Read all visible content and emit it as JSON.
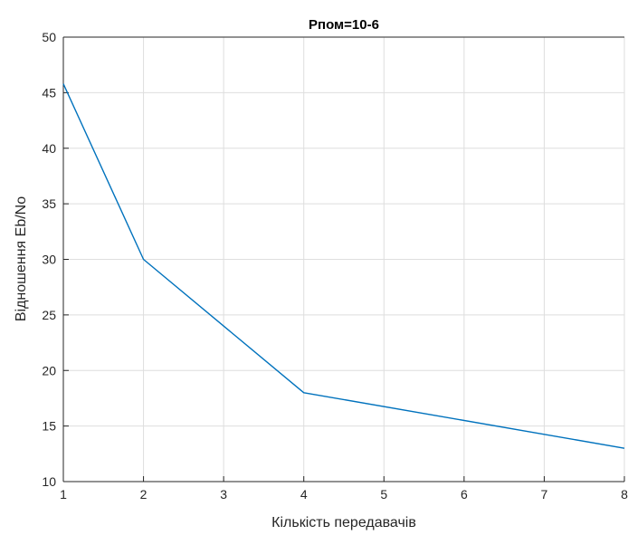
{
  "chart_data": {
    "type": "line",
    "title": "Рпом=10-6",
    "xlabel": "Кількість передавачів",
    "ylabel": "Відношення Eb/No",
    "xlim": [
      1,
      8
    ],
    "ylim": [
      10,
      50
    ],
    "xticks": [
      1,
      2,
      3,
      4,
      5,
      6,
      7,
      8
    ],
    "yticks": [
      10,
      15,
      20,
      25,
      30,
      35,
      40,
      45,
      50
    ],
    "grid": true,
    "series": [
      {
        "x": [
          1,
          2,
          4,
          8
        ],
        "y": [
          45.8,
          30,
          18,
          13
        ],
        "color": "#0072BD"
      }
    ]
  }
}
